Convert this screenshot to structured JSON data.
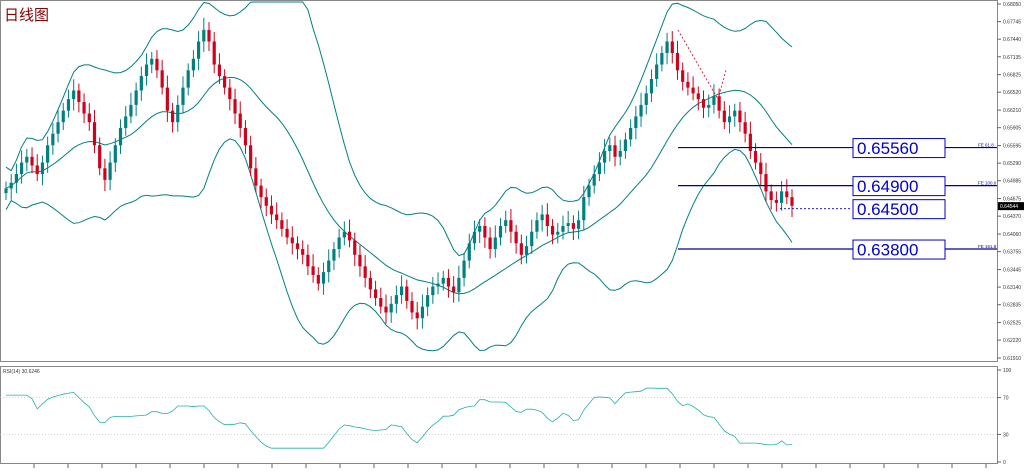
{
  "title": "日线图",
  "price_panel": {
    "y_ticks": [
      "0.68050",
      "0.67745",
      "0.67440",
      "0.67135",
      "0.66825",
      "0.66520",
      "0.66210",
      "0.65905",
      "0.65595",
      "0.65290",
      "0.64985",
      "0.64675",
      "0.64370",
      "0.64060",
      "0.63755",
      "0.63445",
      "0.63140",
      "0.62835",
      "0.62525",
      "0.62220",
      "0.61910"
    ],
    "current_price": "0.64544",
    "fe_labels": [
      "FE 61.8",
      "FE 100.0",
      "FE 161.8"
    ],
    "levels": [
      {
        "label": "0.65560",
        "value": 0.6556,
        "color": "#0000cc"
      },
      {
        "label": "0.64900",
        "value": 0.649,
        "color": "#0000cc"
      },
      {
        "label": "0.64500",
        "value": 0.645,
        "color": "#0000cc"
      },
      {
        "label": "0.63800",
        "value": 0.638,
        "color": "#0000cc"
      }
    ]
  },
  "rsi_panel": {
    "label": "RSI(14) 30.6246",
    "y_ticks": [
      "100",
      "70",
      "30",
      "0"
    ]
  },
  "colors": {
    "bull": "#008080",
    "bear": "#d0021b",
    "band": "#008080",
    "level": "#000099",
    "rsi": "#20b2aa"
  },
  "chart_data": {
    "type": "candlestick",
    "ylim": [
      0.6191,
      0.6805
    ],
    "close_series": [
      0.6485,
      0.6495,
      0.651,
      0.653,
      0.654,
      0.6525,
      0.651,
      0.653,
      0.656,
      0.658,
      0.66,
      0.662,
      0.664,
      0.6655,
      0.6635,
      0.6615,
      0.66,
      0.656,
      0.652,
      0.65,
      0.653,
      0.656,
      0.659,
      0.661,
      0.663,
      0.6655,
      0.668,
      0.67,
      0.671,
      0.669,
      0.666,
      0.662,
      0.66,
      0.663,
      0.666,
      0.669,
      0.671,
      0.674,
      0.676,
      0.674,
      0.67,
      0.668,
      0.666,
      0.664,
      0.6615,
      0.659,
      0.656,
      0.652,
      0.649,
      0.647,
      0.6455,
      0.644,
      0.643,
      0.6415,
      0.64,
      0.639,
      0.638,
      0.637,
      0.635,
      0.6335,
      0.632,
      0.634,
      0.636,
      0.638,
      0.64,
      0.641,
      0.6395,
      0.637,
      0.635,
      0.633,
      0.631,
      0.6295,
      0.628,
      0.627,
      0.6285,
      0.63,
      0.6315,
      0.629,
      0.627,
      0.626,
      0.628,
      0.63,
      0.6315,
      0.632,
      0.633,
      0.6315,
      0.6305,
      0.633,
      0.636,
      0.639,
      0.641,
      0.642,
      0.64,
      0.638,
      0.64,
      0.642,
      0.643,
      0.641,
      0.639,
      0.637,
      0.6385,
      0.641,
      0.643,
      0.644,
      0.642,
      0.6405,
      0.641,
      0.642,
      0.6425,
      0.6415,
      0.643,
      0.647,
      0.649,
      0.651,
      0.653,
      0.655,
      0.656,
      0.654,
      0.655,
      0.657,
      0.659,
      0.661,
      0.663,
      0.665,
      0.6675,
      0.67,
      0.672,
      0.674,
      0.672,
      0.669,
      0.667,
      0.666,
      0.665,
      0.664,
      0.6625,
      0.663,
      0.6645,
      0.662,
      0.66,
      0.661,
      0.662,
      0.66,
      0.658,
      0.655,
      0.653,
      0.651,
      0.648,
      0.6465,
      0.646,
      0.648,
      0.647,
      0.6455
    ]
  }
}
